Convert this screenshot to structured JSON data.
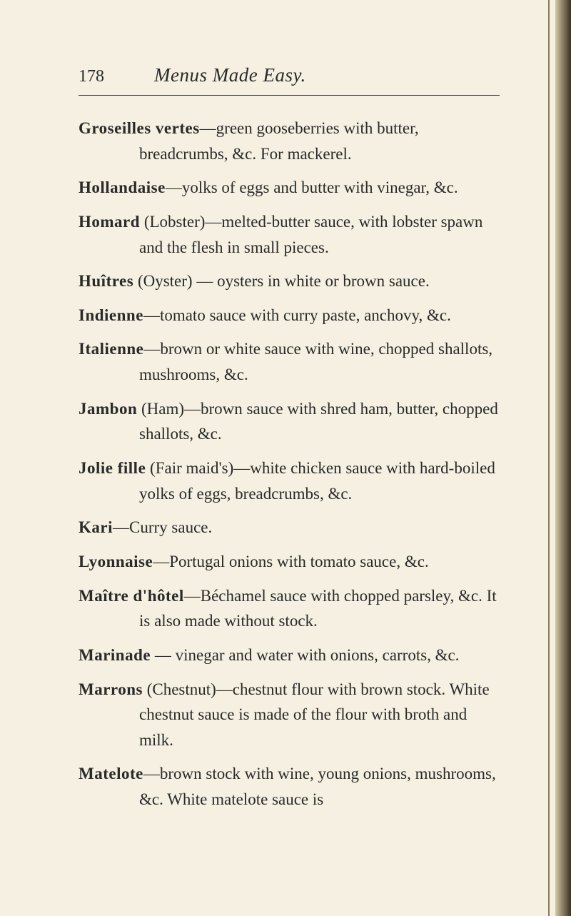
{
  "page_number": "178",
  "page_title": "Menus Made Easy.",
  "background_color": "#f5f0e1",
  "text_color": "#2a2a2a",
  "rule_color": "#3a3a3a",
  "font_family": "Georgia, Times New Roman, serif",
  "title_fontsize": 27,
  "body_fontsize": 23,
  "entries": [
    {
      "term": "Groseilles vertes",
      "definition": "—green gooseberries with butter, breadcrumbs, &c. For mackerel."
    },
    {
      "term": "Hollandaise",
      "definition": "—yolks of eggs and butter with vinegar, &c."
    },
    {
      "term": "Homard",
      "definition": " (Lobster)—melted-butter sauce, with lobster spawn and the flesh in small pieces."
    },
    {
      "term": "Huîtres",
      "definition": " (Oyster) — oysters in white or brown sauce."
    },
    {
      "term": "Indienne",
      "definition": "—tomato sauce with curry paste, anchovy, &c."
    },
    {
      "term": "Italienne",
      "definition": "—brown or white sauce with wine, chopped shallots, mushrooms, &c."
    },
    {
      "term": "Jambon",
      "definition": " (Ham)—brown sauce with shred ham, butter, chopped shallots, &c."
    },
    {
      "term": "Jolie fille",
      "definition": " (Fair maid's)—white chicken sauce with hard-boiled yolks of eggs, breadcrumbs, &c."
    },
    {
      "term": "Kari",
      "definition": "—Curry sauce."
    },
    {
      "term": "Lyonnaise",
      "definition": "—Portugal onions with tomato sauce, &c."
    },
    {
      "term": "Maître d'hôtel",
      "definition": "—Béchamel sauce with chopped parsley, &c. It is also made without stock."
    },
    {
      "term": "Marinade",
      "definition": " — vinegar and water with onions, carrots, &c."
    },
    {
      "term": "Marrons",
      "definition": " (Chestnut)—chestnut flour with brown stock. White chestnut sauce is made of the flour with broth and milk."
    },
    {
      "term": "Matelote",
      "definition": "—brown stock with wine, young onions, mushrooms, &c. White matelote sauce is"
    }
  ]
}
